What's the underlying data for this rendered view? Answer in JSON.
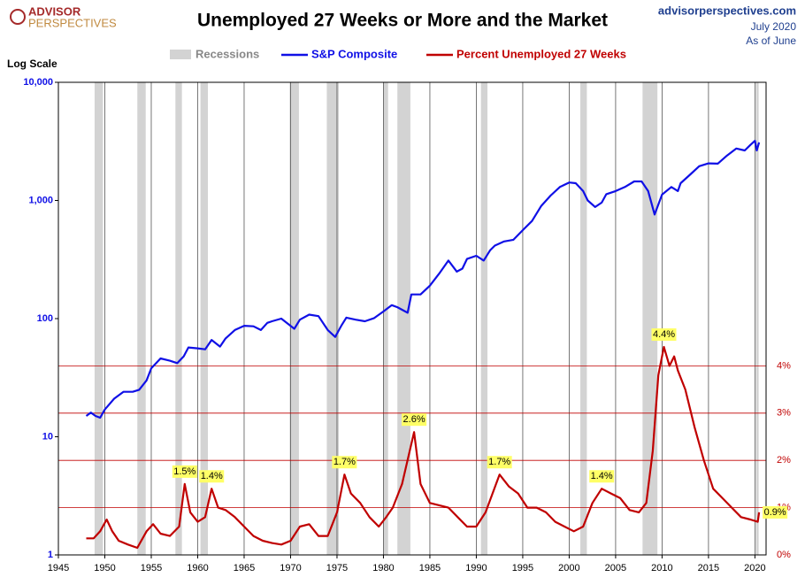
{
  "chart_data": {
    "type": "line",
    "title": "Unemployed 27 Weeks or More and the Market",
    "logo": [
      "ADVISOR",
      "PERSPECTIVES"
    ],
    "source": "advisorperspectives.com",
    "date": "July 2020",
    "note": "As of June",
    "y_label": "Log Scale",
    "recession_label": "Recessions",
    "recession_color": "#d3d3d3",
    "recessions": [
      [
        1948.9,
        1949.8
      ],
      [
        1953.5,
        1954.4
      ],
      [
        1957.6,
        1958.3
      ],
      [
        1960.3,
        1961.1
      ],
      [
        1969.9,
        1970.9
      ],
      [
        1973.9,
        1975.2
      ],
      [
        1980.0,
        1980.5
      ],
      [
        1981.5,
        1982.9
      ],
      [
        1990.5,
        1991.2
      ],
      [
        2001.2,
        2001.9
      ],
      [
        2007.9,
        2009.5
      ],
      [
        2020.1,
        2020.4
      ]
    ],
    "xlim": [
      1945,
      2021.2
    ],
    "xticks": [
      1945,
      1950,
      1955,
      1960,
      1965,
      1970,
      1975,
      1980,
      1985,
      1990,
      1995,
      2000,
      2005,
      2010,
      2015,
      2020
    ],
    "ylog": true,
    "ylim": [
      1,
      10000
    ],
    "yticks": [
      {
        "value": 1,
        "label": "1"
      },
      {
        "value": 10,
        "label": "10"
      },
      {
        "value": 100,
        "label": "100"
      },
      {
        "value": 1000,
        "label": "1,000"
      },
      {
        "value": 10000,
        "label": "10,000"
      }
    ],
    "y2lim": [
      0,
      10
    ],
    "y2ticks": [
      {
        "value": 0,
        "label": "0%"
      },
      {
        "value": 1,
        "label": "1%"
      },
      {
        "value": 2,
        "label": "2%"
      },
      {
        "value": 3,
        "label": "3%"
      },
      {
        "value": 4,
        "label": "4%"
      }
    ],
    "grid": true,
    "series": [
      {
        "name": "S&P Composite",
        "color": "#1010e6",
        "x": [
          1948.0,
          1948.5,
          1949.0,
          1949.5,
          1950.0,
          1951.0,
          1952.0,
          1953.0,
          1953.7,
          1954.5,
          1955.0,
          1956.0,
          1957.0,
          1957.8,
          1958.5,
          1959.0,
          1960.0,
          1960.8,
          1961.5,
          1962.4,
          1963.0,
          1964.0,
          1965.0,
          1966.0,
          1966.8,
          1967.5,
          1968.0,
          1969.0,
          1970.4,
          1971.0,
          1972.0,
          1973.0,
          1974.0,
          1974.8,
          1975.5,
          1976.0,
          1977.0,
          1978.0,
          1979.0,
          1980.0,
          1980.9,
          1981.5,
          1982.6,
          1983.0,
          1984.0,
          1985.0,
          1986.0,
          1987.0,
          1987.9,
          1988.5,
          1989.0,
          1990.0,
          1990.8,
          1991.5,
          1992.0,
          1993.0,
          1994.0,
          1995.0,
          1996.0,
          1997.0,
          1998.0,
          1999.0,
          2000.0,
          2000.7,
          2001.5,
          2002.0,
          2002.8,
          2003.5,
          2004.0,
          2005.0,
          2006.0,
          2007.0,
          2007.8,
          2008.5,
          2009.2,
          2010.0,
          2011.0,
          2011.7,
          2012.0,
          2013.0,
          2014.0,
          2015.0,
          2016.0,
          2017.0,
          2018.0,
          2018.9,
          2019.5,
          2020.0,
          2020.2,
          2020.45
        ],
        "values": [
          15,
          16,
          15,
          14.5,
          17,
          21,
          24,
          24,
          25,
          30,
          38,
          46,
          44,
          42,
          48,
          57,
          56,
          55,
          66,
          58,
          68,
          80,
          87,
          86,
          80,
          92,
          95,
          100,
          82,
          98,
          108,
          105,
          80,
          70,
          88,
          102,
          98,
          95,
          101,
          115,
          130,
          125,
          112,
          160,
          160,
          190,
          240,
          310,
          250,
          265,
          320,
          340,
          310,
          380,
          415,
          450,
          465,
          560,
          670,
          900,
          1100,
          1300,
          1420,
          1400,
          1200,
          1000,
          880,
          960,
          1130,
          1200,
          1300,
          1450,
          1450,
          1200,
          760,
          1120,
          1300,
          1200,
          1400,
          1650,
          1950,
          2060,
          2050,
          2400,
          2750,
          2650,
          2950,
          3200,
          2650,
          3100
        ]
      },
      {
        "name": "Percent Unemployed 27 Weeks",
        "color": "#c00000",
        "axis": "y2",
        "x": [
          1948.0,
          1948.8,
          1949.5,
          1950.2,
          1950.8,
          1951.5,
          1952.5,
          1953.5,
          1954.5,
          1955.2,
          1956.0,
          1957.0,
          1958.0,
          1958.6,
          1959.2,
          1960.0,
          1960.8,
          1961.5,
          1962.2,
          1963.0,
          1964.0,
          1965.0,
          1966.0,
          1967.0,
          1968.0,
          1969.0,
          1970.0,
          1971.0,
          1972.0,
          1973.0,
          1974.0,
          1975.0,
          1975.8,
          1976.5,
          1977.5,
          1978.5,
          1979.5,
          1980.3,
          1981.0,
          1982.0,
          1983.3,
          1984.0,
          1985.0,
          1986.0,
          1987.0,
          1988.0,
          1989.0,
          1990.0,
          1991.0,
          1992.5,
          1993.5,
          1994.5,
          1995.5,
          1996.5,
          1997.5,
          1998.5,
          1999.5,
          2000.5,
          2001.5,
          2002.5,
          2003.5,
          2004.5,
          2005.5,
          2006.5,
          2007.5,
          2008.3,
          2009.0,
          2009.6,
          2010.2,
          2010.8,
          2011.3,
          2011.7,
          2012.5,
          2013.5,
          2014.5,
          2015.5,
          2016.5,
          2017.5,
          2018.5,
          2019.5,
          2020.3,
          2020.45
        ],
        "values": [
          0.35,
          0.35,
          0.5,
          0.75,
          0.5,
          0.3,
          0.22,
          0.15,
          0.5,
          0.65,
          0.45,
          0.4,
          0.6,
          1.5,
          0.9,
          0.7,
          0.8,
          1.4,
          1.0,
          0.95,
          0.8,
          0.6,
          0.4,
          0.3,
          0.25,
          0.22,
          0.3,
          0.6,
          0.65,
          0.4,
          0.4,
          0.9,
          1.7,
          1.3,
          1.1,
          0.8,
          0.6,
          0.8,
          1.0,
          1.5,
          2.6,
          1.5,
          1.1,
          1.05,
          1.0,
          0.8,
          0.6,
          0.6,
          0.9,
          1.7,
          1.45,
          1.3,
          1.0,
          1.0,
          0.9,
          0.7,
          0.6,
          0.5,
          0.6,
          1.1,
          1.4,
          1.3,
          1.2,
          0.95,
          0.9,
          1.1,
          2.2,
          3.8,
          4.4,
          4.0,
          4.2,
          3.9,
          3.5,
          2.7,
          2.0,
          1.4,
          1.2,
          1.0,
          0.8,
          0.75,
          0.7,
          0.9
        ]
      }
    ],
    "annotations": [
      {
        "x": 1958.6,
        "value": 1.5,
        "label": "1.5%"
      },
      {
        "x": 1961.5,
        "value": 1.4,
        "label": "1.4%"
      },
      {
        "x": 1975.8,
        "value": 1.7,
        "label": "1.7%"
      },
      {
        "x": 1983.3,
        "value": 2.6,
        "label": "2.6%"
      },
      {
        "x": 1992.5,
        "value": 1.7,
        "label": "1.7%"
      },
      {
        "x": 2003.5,
        "value": 1.4,
        "label": "1.4%"
      },
      {
        "x": 2010.2,
        "value": 4.4,
        "label": "4.4%"
      },
      {
        "x": 2020.45,
        "value": 0.9,
        "label": "0.9%"
      }
    ]
  }
}
